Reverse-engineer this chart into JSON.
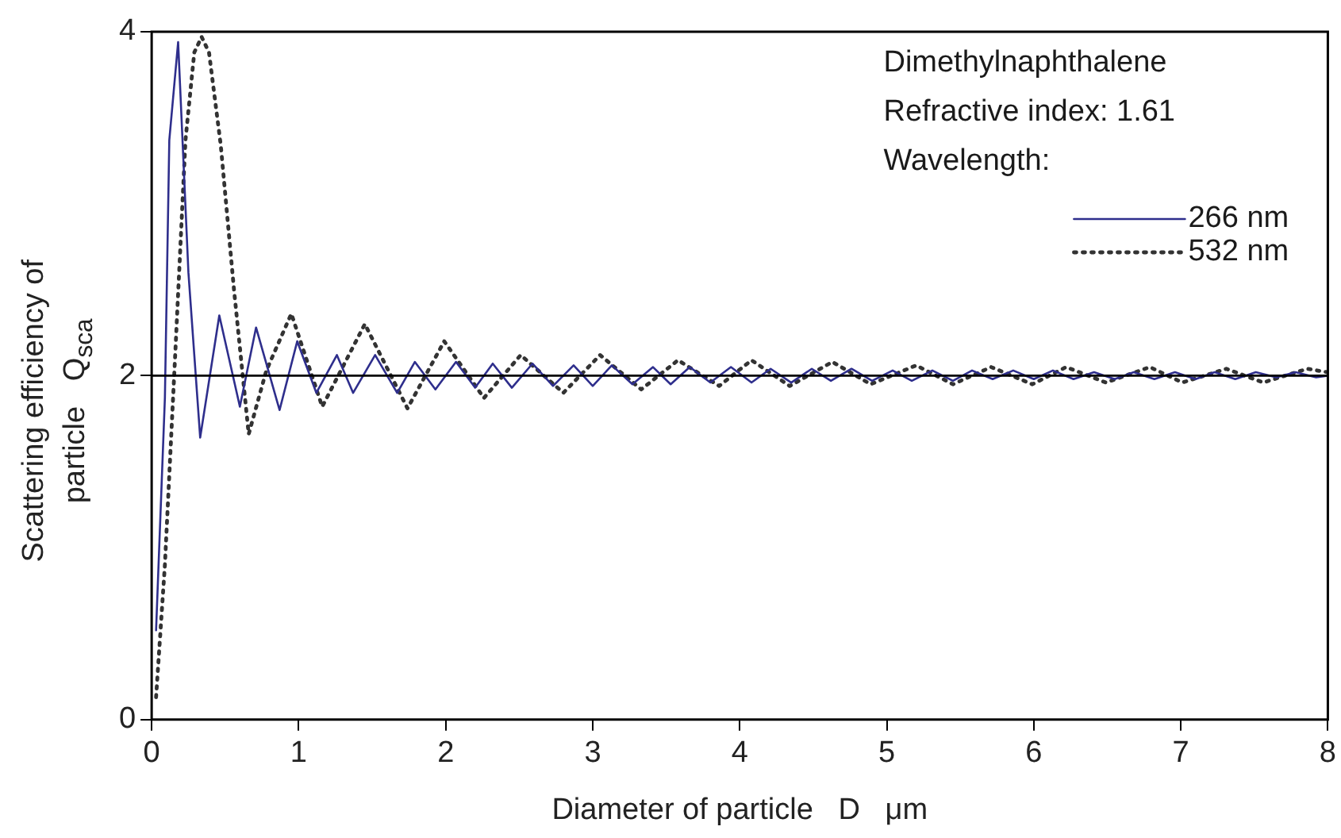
{
  "chart_data": {
    "type": "line",
    "xlabel": "Diameter of particle   D   μm",
    "ylabel": "Scattering efficiency of\nparticle   Q$_{sca}$",
    "legend_title": "Dimethylnaphthalene\nRefractive index: 1.61\nWavelength:",
    "xlim": [
      0,
      8
    ],
    "xticks": [
      0,
      1,
      2,
      3,
      4,
      5,
      6,
      7,
      8
    ],
    "ylim": [
      0,
      4
    ],
    "yticks": [
      0,
      2,
      4
    ],
    "grid": false,
    "legend": "top right",
    "marker": "none",
    "ref_lines": [
      {
        "axis": "y",
        "value": 2,
        "color": "#000000"
      }
    ],
    "series": [
      {
        "name": "266 nm",
        "color": "#2e2e8c",
        "line_style": "solid",
        "x": [
          0.03,
          0.09,
          0.12,
          0.18,
          0.25,
          0.33,
          0.46,
          0.6,
          0.71,
          0.87,
          0.99,
          1.12,
          1.26,
          1.37,
          1.52,
          1.67,
          1.79,
          1.93,
          2.07,
          2.2,
          2.32,
          2.45,
          2.59,
          2.73,
          2.87,
          3.0,
          3.13,
          3.27,
          3.41,
          3.53,
          3.66,
          3.8,
          3.94,
          4.08,
          4.21,
          4.35,
          4.49,
          4.62,
          4.76,
          4.9,
          5.04,
          5.17,
          5.31,
          5.45,
          5.58,
          5.72,
          5.86,
          6.0,
          6.13,
          6.27,
          6.41,
          6.55,
          6.68,
          6.82,
          6.96,
          7.1,
          7.23,
          7.37,
          7.51,
          7.65,
          7.78,
          7.92,
          8.0
        ],
        "values": [
          0.52,
          1.87,
          3.37,
          3.94,
          2.6,
          1.64,
          2.35,
          1.82,
          2.28,
          1.8,
          2.2,
          1.9,
          2.12,
          1.9,
          2.12,
          1.9,
          2.08,
          1.92,
          2.08,
          1.93,
          2.07,
          1.93,
          2.07,
          1.94,
          2.06,
          1.94,
          2.06,
          1.95,
          2.05,
          1.95,
          2.05,
          1.96,
          2.05,
          1.96,
          2.04,
          1.96,
          2.04,
          1.97,
          2.04,
          1.97,
          2.03,
          1.97,
          2.03,
          1.97,
          2.03,
          1.98,
          2.03,
          1.98,
          2.03,
          1.98,
          2.02,
          1.98,
          2.02,
          1.98,
          2.02,
          1.98,
          2.02,
          1.98,
          2.02,
          1.99,
          2.02,
          1.99,
          2.0
        ]
      },
      {
        "name": "532 nm",
        "color": "#333333",
        "line_style": "dotted",
        "x": [
          0.03,
          0.09,
          0.16,
          0.23,
          0.29,
          0.34,
          0.39,
          0.47,
          0.56,
          0.66,
          0.78,
          0.95,
          1.16,
          1.45,
          1.74,
          1.99,
          2.26,
          2.51,
          2.8,
          3.05,
          3.33,
          3.58,
          3.86,
          4.08,
          4.34,
          4.63,
          4.89,
          5.2,
          5.45,
          5.71,
          5.99,
          6.22,
          6.49,
          6.79,
          7.01,
          7.31,
          7.56,
          7.86,
          8.0
        ],
        "values": [
          0.13,
          0.9,
          2.12,
          3.37,
          3.88,
          3.97,
          3.88,
          3.34,
          2.5,
          1.66,
          2.03,
          2.36,
          1.82,
          2.3,
          1.81,
          2.2,
          1.87,
          2.12,
          1.9,
          2.12,
          1.92,
          2.09,
          1.94,
          2.09,
          1.94,
          2.08,
          1.95,
          2.06,
          1.95,
          2.05,
          1.95,
          2.05,
          1.96,
          2.05,
          1.96,
          2.04,
          1.96,
          2.04,
          2.02
        ]
      }
    ]
  }
}
